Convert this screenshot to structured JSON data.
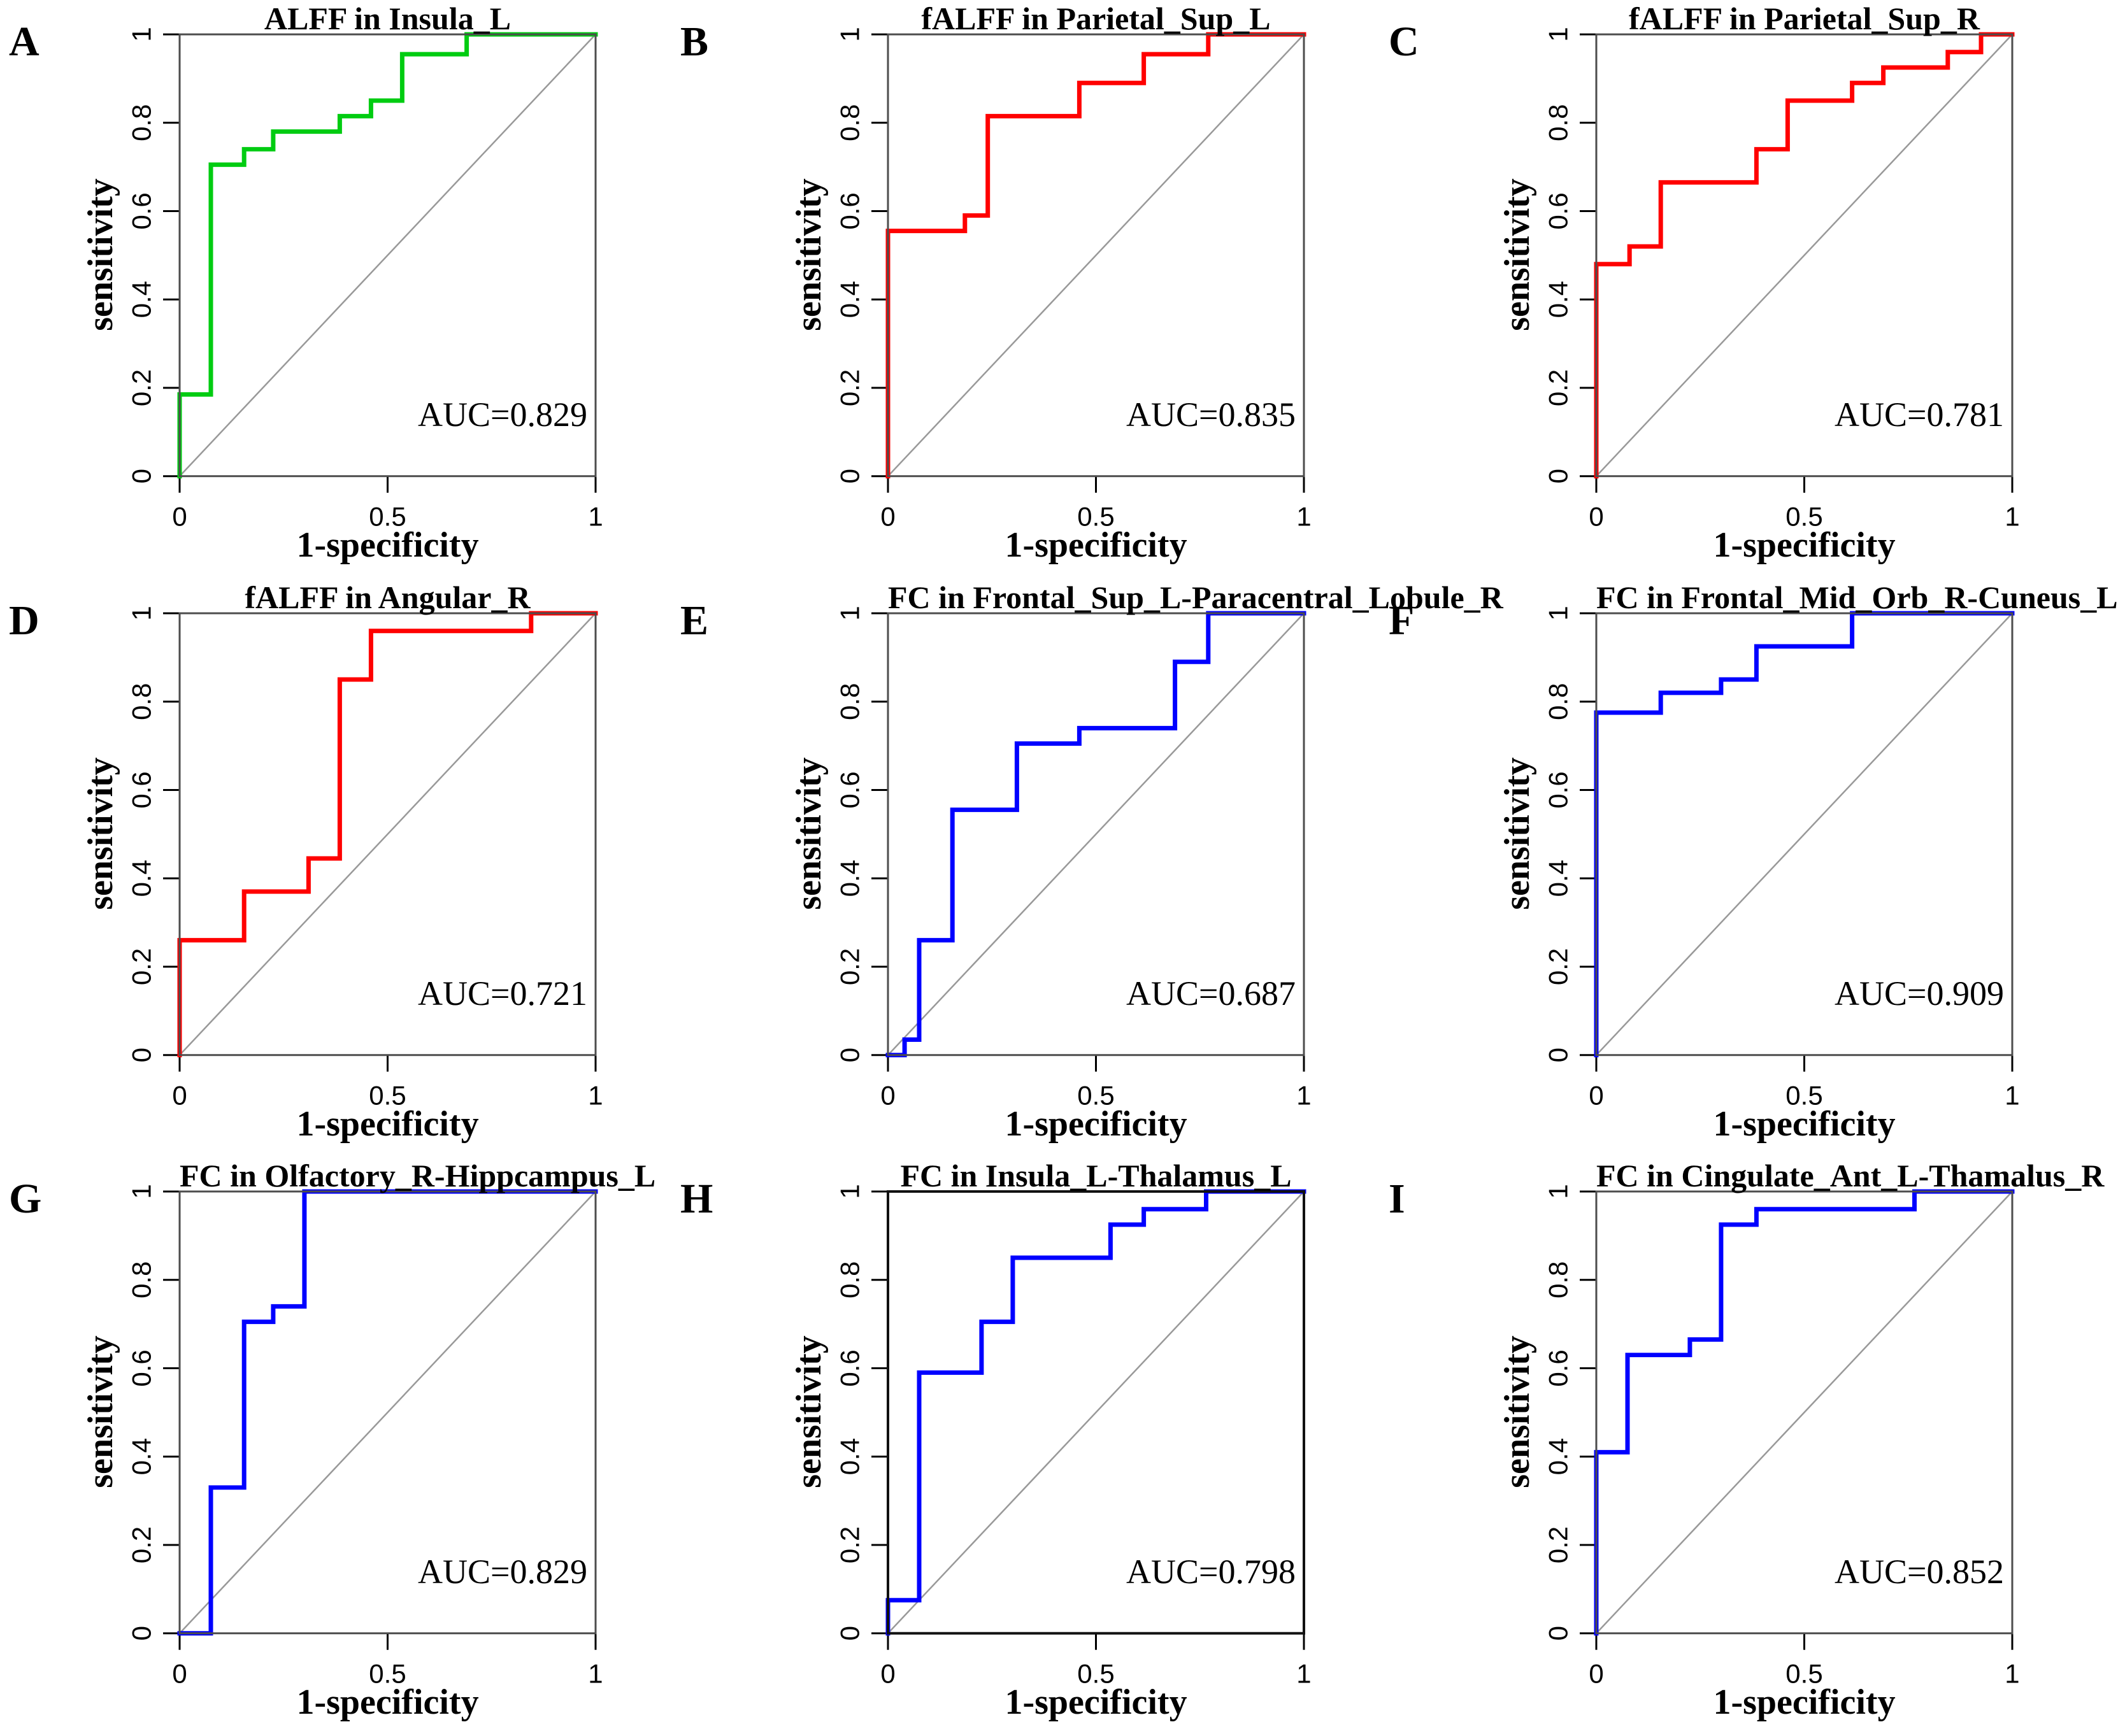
{
  "figure": {
    "background": "#ffffff",
    "xlabel": "1-specificity",
    "ylabel": "sensitivity",
    "x_ticks": [
      "0",
      "0.5",
      "1"
    ],
    "x_tick_values": [
      0,
      0.5,
      1
    ],
    "y_ticks": [
      "0",
      "0.2",
      "0.4",
      "0.6",
      "0.8",
      "1"
    ],
    "y_tick_values": [
      0,
      0.2,
      0.4,
      0.6,
      0.8,
      1
    ],
    "xlim": [
      0,
      1
    ],
    "ylim": [
      0,
      1
    ],
    "grid": "off",
    "diagonal_color": "#999999",
    "axis_color": "#000000",
    "default_box_color": "#4d4d4d",
    "curve_colors": {
      "green": "#00CC11",
      "red": "#FF0000",
      "blue": "#0000FF"
    }
  },
  "chart_data": [
    {
      "panel": "A",
      "type": "line",
      "title": "ALFF in Insula_L",
      "auc": 0.829,
      "auc_label": "AUC=0.829",
      "color": "#00CC11",
      "box_color": "#4d4d4d",
      "xlabel": "1-specificity",
      "ylabel": "sensitivity",
      "xlim": [
        0,
        1
      ],
      "ylim": [
        0,
        1
      ],
      "roc_points": [
        [
          0,
          0
        ],
        [
          0,
          0.185
        ],
        [
          0.075,
          0.185
        ],
        [
          0.075,
          0.705
        ],
        [
          0.155,
          0.705
        ],
        [
          0.155,
          0.74
        ],
        [
          0.225,
          0.74
        ],
        [
          0.225,
          0.78
        ],
        [
          0.385,
          0.78
        ],
        [
          0.385,
          0.815
        ],
        [
          0.46,
          0.815
        ],
        [
          0.46,
          0.85
        ],
        [
          0.535,
          0.85
        ],
        [
          0.535,
          0.955
        ],
        [
          0.69,
          0.955
        ],
        [
          0.69,
          1
        ],
        [
          1,
          1
        ]
      ]
    },
    {
      "panel": "B",
      "type": "line",
      "title": "fALFF in Parietal_Sup_L",
      "auc": 0.835,
      "auc_label": "AUC=0.835",
      "color": "#FF0000",
      "box_color": "#4d4d4d",
      "xlabel": "1-specificity",
      "ylabel": "sensitivity",
      "xlim": [
        0,
        1
      ],
      "ylim": [
        0,
        1
      ],
      "roc_points": [
        [
          0,
          0
        ],
        [
          0,
          0.555
        ],
        [
          0.185,
          0.555
        ],
        [
          0.185,
          0.59
        ],
        [
          0.24,
          0.59
        ],
        [
          0.24,
          0.815
        ],
        [
          0.46,
          0.815
        ],
        [
          0.46,
          0.89
        ],
        [
          0.615,
          0.89
        ],
        [
          0.615,
          0.955
        ],
        [
          0.77,
          0.955
        ],
        [
          0.77,
          1
        ],
        [
          1,
          1
        ]
      ]
    },
    {
      "panel": "C",
      "type": "line",
      "title": "fALFF in Parietal_Sup_R",
      "auc": 0.781,
      "auc_label": "AUC=0.781",
      "color": "#FF0000",
      "box_color": "#4d4d4d",
      "xlabel": "1-specificity",
      "ylabel": "sensitivity",
      "xlim": [
        0,
        1
      ],
      "ylim": [
        0,
        1
      ],
      "roc_points": [
        [
          0,
          0
        ],
        [
          0,
          0.48
        ],
        [
          0.08,
          0.48
        ],
        [
          0.08,
          0.52
        ],
        [
          0.155,
          0.52
        ],
        [
          0.155,
          0.665
        ],
        [
          0.385,
          0.665
        ],
        [
          0.385,
          0.74
        ],
        [
          0.46,
          0.74
        ],
        [
          0.46,
          0.85
        ],
        [
          0.615,
          0.85
        ],
        [
          0.615,
          0.89
        ],
        [
          0.69,
          0.89
        ],
        [
          0.69,
          0.925
        ],
        [
          0.845,
          0.925
        ],
        [
          0.845,
          0.96
        ],
        [
          0.925,
          0.96
        ],
        [
          0.925,
          1
        ],
        [
          1,
          1
        ]
      ]
    },
    {
      "panel": "D",
      "type": "line",
      "title": "fALFF in Angular_R",
      "auc": 0.721,
      "auc_label": "AUC=0.721",
      "color": "#FF0000",
      "box_color": "#4d4d4d",
      "xlabel": "1-specificity",
      "ylabel": "sensitivity",
      "xlim": [
        0,
        1
      ],
      "ylim": [
        0,
        1
      ],
      "roc_points": [
        [
          0,
          0
        ],
        [
          0,
          0.26
        ],
        [
          0.155,
          0.26
        ],
        [
          0.155,
          0.37
        ],
        [
          0.31,
          0.37
        ],
        [
          0.31,
          0.445
        ],
        [
          0.385,
          0.445
        ],
        [
          0.385,
          0.85
        ],
        [
          0.46,
          0.85
        ],
        [
          0.46,
          0.96
        ],
        [
          0.845,
          0.96
        ],
        [
          0.845,
          1
        ],
        [
          1,
          1
        ]
      ]
    },
    {
      "panel": "E",
      "type": "line",
      "title": "FC in Frontal_Sup_L-Paracentral_Lobule_R",
      "auc": 0.687,
      "auc_label": "AUC=0.687",
      "color": "#0000FF",
      "box_color": "#4d4d4d",
      "xlabel": "1-specificity",
      "ylabel": "sensitivity",
      "xlim": [
        0,
        1
      ],
      "ylim": [
        0,
        1
      ],
      "roc_points": [
        [
          0,
          0
        ],
        [
          0.04,
          0
        ],
        [
          0.04,
          0.035
        ],
        [
          0.075,
          0.035
        ],
        [
          0.075,
          0.26
        ],
        [
          0.155,
          0.26
        ],
        [
          0.155,
          0.555
        ],
        [
          0.31,
          0.555
        ],
        [
          0.31,
          0.705
        ],
        [
          0.46,
          0.705
        ],
        [
          0.46,
          0.74
        ],
        [
          0.69,
          0.74
        ],
        [
          0.69,
          0.89
        ],
        [
          0.77,
          0.89
        ],
        [
          0.77,
          1
        ],
        [
          1,
          1
        ]
      ]
    },
    {
      "panel": "F",
      "type": "line",
      "title": "FC in Frontal_Mid_Orb_R-Cuneus_L",
      "auc": 0.909,
      "auc_label": "AUC=0.909",
      "color": "#0000FF",
      "box_color": "#4d4d4d",
      "xlabel": "1-specificity",
      "ylabel": "sensitivity",
      "xlim": [
        0,
        1
      ],
      "ylim": [
        0,
        1
      ],
      "roc_points": [
        [
          0,
          0
        ],
        [
          0,
          0.775
        ],
        [
          0.155,
          0.775
        ],
        [
          0.155,
          0.82
        ],
        [
          0.3,
          0.82
        ],
        [
          0.3,
          0.85
        ],
        [
          0.385,
          0.85
        ],
        [
          0.385,
          0.925
        ],
        [
          0.615,
          0.925
        ],
        [
          0.615,
          1
        ],
        [
          1,
          1
        ]
      ]
    },
    {
      "panel": "G",
      "type": "line",
      "title": "FC in Olfactory_R-Hippcampus_L",
      "auc": 0.829,
      "auc_label": "AUC=0.829",
      "color": "#0000FF",
      "box_color": "#4d4d4d",
      "xlabel": "1-specificity",
      "ylabel": "sensitivity",
      "xlim": [
        0,
        1
      ],
      "ylim": [
        0,
        1
      ],
      "roc_points": [
        [
          0,
          0
        ],
        [
          0.075,
          0
        ],
        [
          0.075,
          0.33
        ],
        [
          0.155,
          0.33
        ],
        [
          0.155,
          0.705
        ],
        [
          0.225,
          0.705
        ],
        [
          0.225,
          0.74
        ],
        [
          0.3,
          0.74
        ],
        [
          0.3,
          1
        ],
        [
          1,
          1
        ]
      ]
    },
    {
      "panel": "H",
      "type": "line",
      "title": "FC in Insula_L-Thalamus_L",
      "auc": 0.798,
      "auc_label": "AUC=0.798",
      "color": "#0000FF",
      "box_color": "#111111",
      "xlabel": "1-specificity",
      "ylabel": "sensitivity",
      "xlim": [
        0,
        1
      ],
      "ylim": [
        0,
        1
      ],
      "roc_points": [
        [
          0,
          0
        ],
        [
          0,
          0.075
        ],
        [
          0.075,
          0.075
        ],
        [
          0.075,
          0.59
        ],
        [
          0.225,
          0.59
        ],
        [
          0.225,
          0.705
        ],
        [
          0.3,
          0.705
        ],
        [
          0.3,
          0.85
        ],
        [
          0.535,
          0.85
        ],
        [
          0.535,
          0.925
        ],
        [
          0.615,
          0.925
        ],
        [
          0.615,
          0.96
        ],
        [
          0.765,
          0.96
        ],
        [
          0.765,
          1
        ],
        [
          1,
          1
        ]
      ]
    },
    {
      "panel": "I",
      "type": "line",
      "title": "FC in Cingulate_Ant_L-Thamalus_R",
      "auc": 0.852,
      "auc_label": "AUC=0.852",
      "color": "#0000FF",
      "box_color": "#4d4d4d",
      "xlabel": "1-specificity",
      "ylabel": "sensitivity",
      "xlim": [
        0,
        1
      ],
      "ylim": [
        0,
        1
      ],
      "roc_points": [
        [
          0,
          0
        ],
        [
          0,
          0.41
        ],
        [
          0.075,
          0.41
        ],
        [
          0.075,
          0.63
        ],
        [
          0.225,
          0.63
        ],
        [
          0.225,
          0.665
        ],
        [
          0.3,
          0.665
        ],
        [
          0.3,
          0.925
        ],
        [
          0.385,
          0.925
        ],
        [
          0.385,
          0.96
        ],
        [
          0.765,
          0.96
        ],
        [
          0.765,
          1
        ],
        [
          1,
          1
        ]
      ]
    }
  ]
}
